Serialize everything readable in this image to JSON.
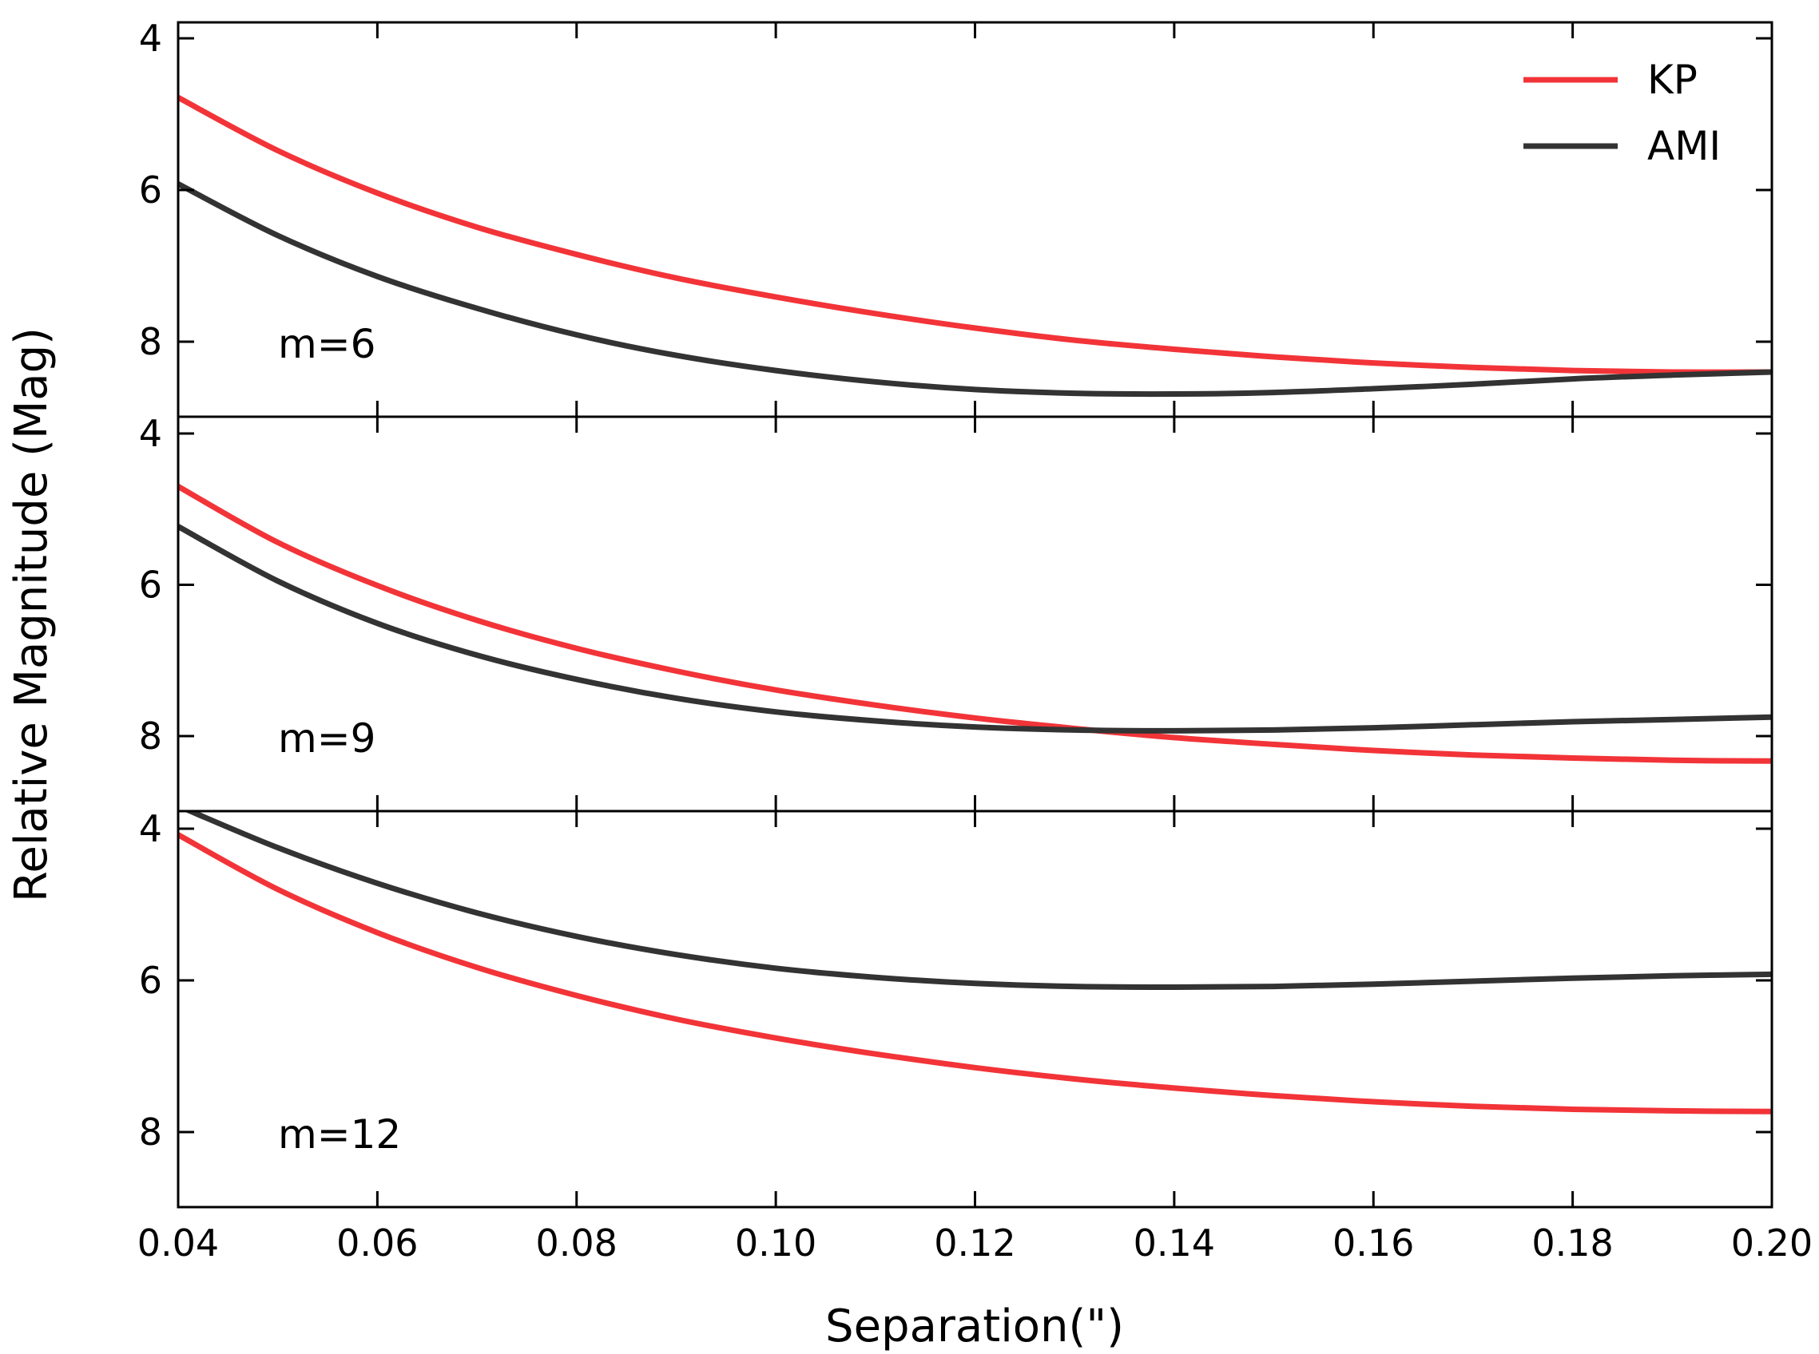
{
  "chart_data": {
    "type": "line",
    "xlabel": "Separation(\")",
    "ylabel": "Relative Magnitude (Mag)",
    "xlim": [
      0.04,
      0.2
    ],
    "x_ticks": [
      "0.04",
      "0.06",
      "0.08",
      "0.10",
      "0.12",
      "0.14",
      "0.16",
      "0.18",
      "0.20"
    ],
    "y_ticks": [
      "4",
      "6",
      "8"
    ],
    "ylim": [
      9.0,
      3.8
    ],
    "y_inverted": true,
    "grid": false,
    "legend": {
      "placement": "top-right",
      "entries": [
        "KP",
        "AMI"
      ]
    },
    "colors": {
      "KP": "#f23438",
      "AMI": "#333333"
    },
    "x": [
      0.04,
      0.05,
      0.06,
      0.07,
      0.08,
      0.09,
      0.1,
      0.11,
      0.12,
      0.13,
      0.14,
      0.15,
      0.16,
      0.17,
      0.18,
      0.19,
      0.2
    ],
    "panels": [
      {
        "annotation": "m=6",
        "series": [
          {
            "name": "KP",
            "values": [
              4.78,
              5.48,
              6.04,
              6.49,
              6.85,
              7.16,
              7.41,
              7.63,
              7.82,
              7.98,
              8.1,
              8.2,
              8.28,
              8.34,
              8.38,
              8.4,
              8.4
            ]
          },
          {
            "name": "AMI",
            "values": [
              5.92,
              6.6,
              7.14,
              7.56,
              7.91,
              8.18,
              8.38,
              8.53,
              8.63,
              8.68,
              8.69,
              8.67,
              8.62,
              8.56,
              8.49,
              8.44,
              8.4
            ]
          }
        ]
      },
      {
        "annotation": "m=9",
        "series": [
          {
            "name": "KP",
            "values": [
              4.7,
              5.44,
              6.01,
              6.47,
              6.84,
              7.14,
              7.39,
              7.59,
              7.76,
              7.9,
              8.02,
              8.11,
              8.19,
              8.25,
              8.29,
              8.32,
              8.33
            ]
          },
          {
            "name": "AMI",
            "values": [
              5.23,
              5.95,
              6.51,
              6.93,
              7.25,
              7.5,
              7.68,
              7.8,
              7.88,
              7.92,
              7.93,
              7.92,
              7.89,
              7.85,
              7.81,
              7.78,
              7.75
            ]
          }
        ]
      },
      {
        "annotation": "m=12",
        "series": [
          {
            "name": "KP",
            "values": [
              4.08,
              4.8,
              5.37,
              5.83,
              6.2,
              6.51,
              6.76,
              6.97,
              7.15,
              7.3,
              7.42,
              7.52,
              7.6,
              7.66,
              7.7,
              7.72,
              7.73
            ]
          },
          {
            "name": "AMI",
            "values": [
              3.7,
              4.25,
              4.72,
              5.11,
              5.42,
              5.66,
              5.84,
              5.96,
              6.04,
              6.08,
              6.09,
              6.08,
              6.05,
              6.01,
              5.97,
              5.94,
              5.92
            ]
          }
        ]
      }
    ]
  }
}
